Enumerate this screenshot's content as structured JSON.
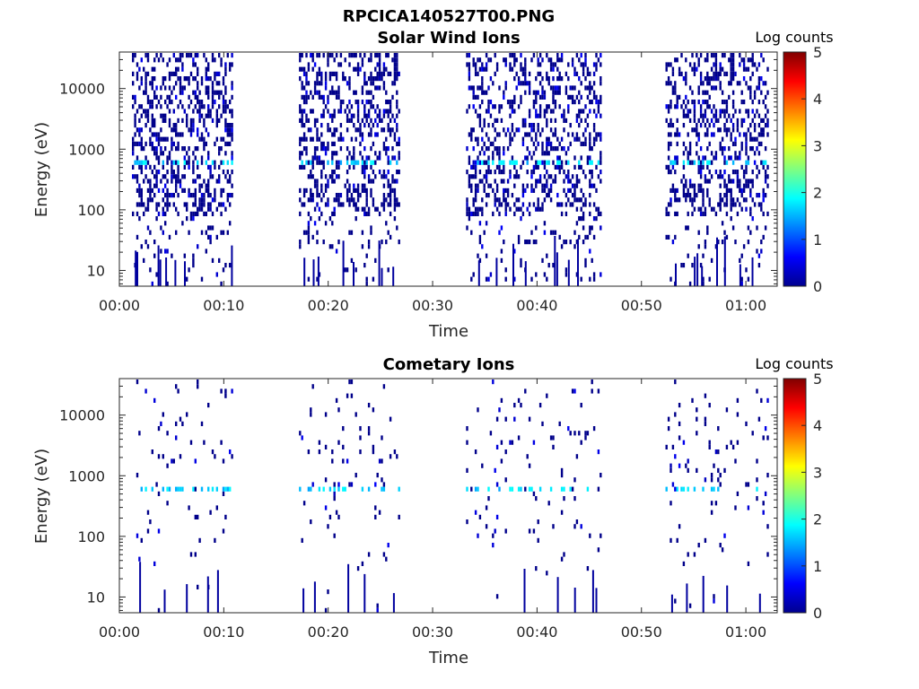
{
  "figure": {
    "title": "RPCICA140527T00.PNG"
  },
  "chart_data": [
    {
      "type": "heatmap",
      "title": "Solar Wind Ions",
      "xlabel": "Time",
      "ylabel": "Energy (eV)",
      "x_range_minutes": [
        0,
        63
      ],
      "ylim": [
        5.5,
        40000
      ],
      "y_scale": "log",
      "x_ticks": [
        {
          "label": "00:00",
          "minutes": 0
        },
        {
          "label": "00:10",
          "minutes": 10
        },
        {
          "label": "00:20",
          "minutes": 20
        },
        {
          "label": "00:30",
          "minutes": 30
        },
        {
          "label": "00:40",
          "minutes": 40
        },
        {
          "label": "00:50",
          "minutes": 50
        },
        {
          "label": "01:00",
          "minutes": 60
        }
      ],
      "y_ticks": [
        {
          "label": "10",
          "value": 10
        },
        {
          "label": "100",
          "value": 100
        },
        {
          "label": "1000",
          "value": 1000
        },
        {
          "label": "10000",
          "value": 10000
        }
      ],
      "colorbar": {
        "label": "Log counts",
        "min": 0,
        "max": 5,
        "ticks": [
          "0",
          "1",
          "2",
          "3",
          "4",
          "5"
        ]
      },
      "activity_windows_minutes": [
        [
          1.2,
          10.8
        ],
        [
          17.2,
          26.8
        ],
        [
          33.2,
          46.0
        ],
        [
          52.3,
          62.0
        ]
      ],
      "peak_energy_eV": 600,
      "peak_log_counts": 1.9
    },
    {
      "type": "heatmap",
      "title": "Cometary Ions",
      "xlabel": "Time",
      "ylabel": "Energy (eV)",
      "x_range_minutes": [
        0,
        63
      ],
      "ylim": [
        5.5,
        40000
      ],
      "y_scale": "log",
      "x_ticks": [
        {
          "label": "00:00",
          "minutes": 0
        },
        {
          "label": "00:10",
          "minutes": 10
        },
        {
          "label": "00:20",
          "minutes": 20
        },
        {
          "label": "00:30",
          "minutes": 30
        },
        {
          "label": "00:40",
          "minutes": 40
        },
        {
          "label": "00:50",
          "minutes": 50
        },
        {
          "label": "01:00",
          "minutes": 60
        }
      ],
      "y_ticks": [
        {
          "label": "10",
          "value": 10
        },
        {
          "label": "100",
          "value": 100
        },
        {
          "label": "1000",
          "value": 1000
        },
        {
          "label": "10000",
          "value": 10000
        }
      ],
      "colorbar": {
        "label": "Log counts",
        "min": 0,
        "max": 5,
        "ticks": [
          "0",
          "1",
          "2",
          "3",
          "4",
          "5"
        ]
      },
      "activity_windows_minutes": [
        [
          1.2,
          10.8
        ],
        [
          17.2,
          26.8
        ],
        [
          33.2,
          46.0
        ],
        [
          52.3,
          62.0
        ]
      ],
      "peak_energy_eV": 600,
      "peak_log_counts": 1.9
    }
  ]
}
